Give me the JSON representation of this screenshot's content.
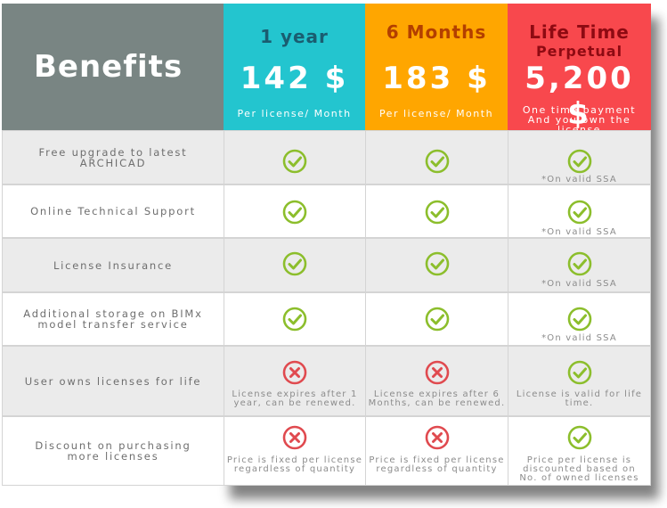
{
  "header": {
    "benefits_title": "Benefits",
    "plans": [
      {
        "name": "1 year",
        "price": "142 $",
        "unit": "Per license/ Month",
        "color": "#23c5cf"
      },
      {
        "name": "6 Months",
        "price": "183 $",
        "unit": "Per license/ Month",
        "color": "#ffa600"
      },
      {
        "name": "Life Time",
        "subtitle": "Perpetual",
        "price": "5,200 $",
        "unit_line1": "One time payment",
        "unit_line2": "And you own the license",
        "color": "#f8484d"
      }
    ]
  },
  "rows": [
    {
      "label": "Free upgrade to latest ARCHICAD",
      "cells": [
        {
          "icon": "check-icon"
        },
        {
          "icon": "check-icon"
        },
        {
          "icon": "check-icon",
          "note": "*On valid SSA"
        }
      ]
    },
    {
      "label": "Online Technical Support",
      "cells": [
        {
          "icon": "check-icon"
        },
        {
          "icon": "check-icon"
        },
        {
          "icon": "check-icon",
          "note": "*On valid SSA"
        }
      ]
    },
    {
      "label": "License Insurance",
      "cells": [
        {
          "icon": "check-icon"
        },
        {
          "icon": "check-icon"
        },
        {
          "icon": "check-icon",
          "note": "*On valid SSA"
        }
      ]
    },
    {
      "label_line1": "Additional storage on BIMx",
      "label_line2": "model transfer service",
      "cells": [
        {
          "icon": "check-icon"
        },
        {
          "icon": "check-icon"
        },
        {
          "icon": "check-icon",
          "note": "*On valid SSA"
        }
      ]
    },
    {
      "label": "User owns licenses for life",
      "cells": [
        {
          "icon": "cross-icon",
          "note_line1": "License expires after 1",
          "note_line2": "year, can be renewed."
        },
        {
          "icon": "cross-icon",
          "note_line1": "License expires after 6",
          "note_line2": "Months, can be renewed."
        },
        {
          "icon": "check-icon",
          "note_line1": "License is valid for life",
          "note_line2": "time."
        }
      ]
    },
    {
      "label_line1": "Discount on purchasing",
      "label_line2": "more licenses",
      "cells": [
        {
          "icon": "cross-icon",
          "note_line1": "Price is fixed per license",
          "note_line2": "regardless of quantity"
        },
        {
          "icon": "cross-icon",
          "note_line1": "Price is fixed per license",
          "note_line2": "regardless of quantity"
        },
        {
          "icon": "check-icon",
          "note_line1": "Price per license is",
          "note_line2": "discounted based on",
          "note_line3": "No. of owned licenses"
        }
      ]
    }
  ],
  "colors": {
    "check": "#8cbe2c",
    "cross": "#e04a4f",
    "benefits_bg": "#798583"
  }
}
